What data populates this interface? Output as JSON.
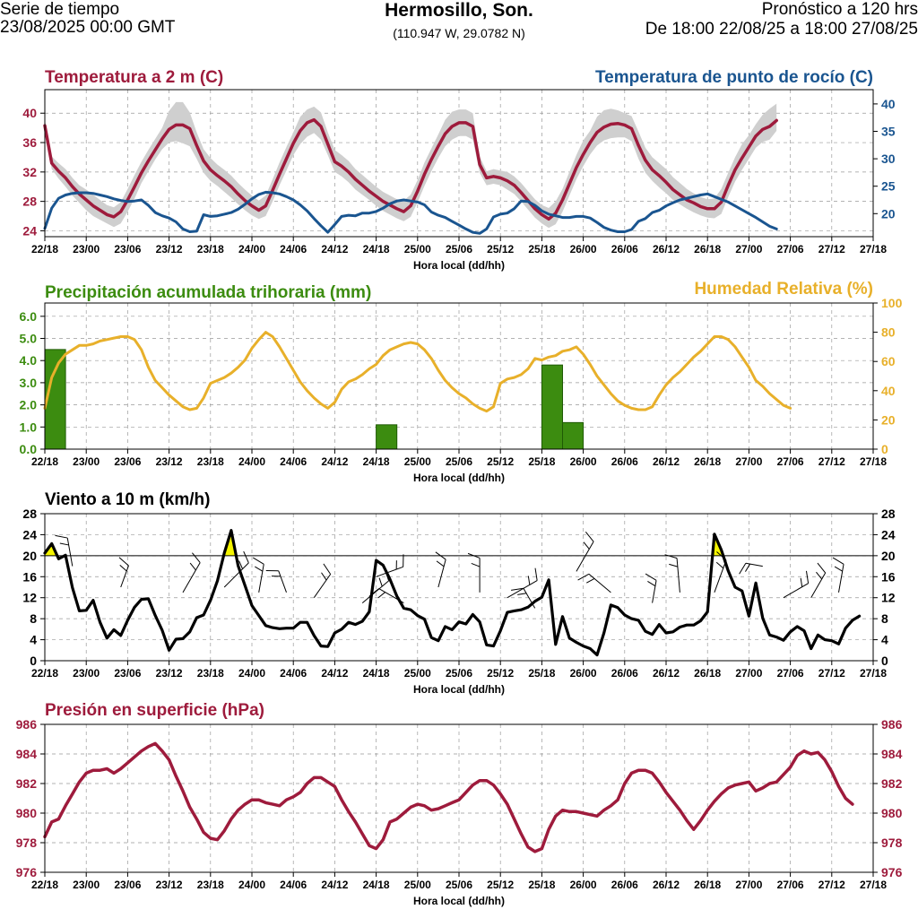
{
  "header": {
    "left_line1": "Serie de tiempo",
    "left_line2": "23/08/2025 00:00 GMT",
    "center_title": "Hermosillo, Son.",
    "center_coords": "(110.947 W, 29.0782 N)",
    "right_line1": "Pronóstico a 120 hrs",
    "right_line2": "De 18:00 22/08/25 a 18:00 27/08/25"
  },
  "colors": {
    "temperature": "#9e1b3c",
    "dewpoint": "#1a5590",
    "precip": "#3c8c10",
    "humidity": "#e8b02a",
    "wind": "#000000",
    "gust_fill": "#f5f500",
    "pressure": "#9e1b3c",
    "spread": "#cfcfcf"
  },
  "chart_data": [
    {
      "type": "line",
      "title_left": "Temperatura a 2 m (C)",
      "title_right": "Temperatura de punto de rocío (C)",
      "xlabel": "Hora local (dd/hh)",
      "x_ticks": [
        "22/18",
        "23/00",
        "23/06",
        "23/12",
        "23/18",
        "24/00",
        "24/06",
        "24/12",
        "24/18",
        "25/00",
        "25/06",
        "25/12",
        "25/18",
        "26/00",
        "26/06",
        "26/12",
        "26/18",
        "27/00",
        "27/06",
        "27/12",
        "27/18"
      ],
      "left_ylim": [
        23.2,
        43.2
      ],
      "left_yticks": [
        24,
        28,
        32,
        36,
        40
      ],
      "right_ylim": [
        15.8,
        42.6
      ],
      "right_yticks": [
        20,
        25,
        30,
        35,
        40
      ],
      "series": [
        {
          "name": "Temperatura a 2 m",
          "axis": "left",
          "values": [
            38.3,
            33.2,
            32.1,
            31.2,
            30.0,
            29.0,
            28.2,
            27.4,
            26.8,
            26.2,
            25.9,
            26.6,
            28.2,
            30.0,
            31.9,
            33.5,
            35.0,
            36.5,
            37.8,
            38.4,
            38.4,
            37.9,
            35.6,
            33.5,
            32.3,
            31.5,
            30.8,
            30.0,
            29.0,
            28.1,
            27.4,
            26.8,
            27.4,
            29.5,
            31.7,
            33.8,
            35.9,
            37.6,
            38.7,
            39.1,
            38.2,
            35.8,
            33.4,
            32.8,
            32.0,
            31.0,
            30.2,
            29.4,
            28.7,
            28.0,
            27.5,
            27.0,
            26.6,
            27.4,
            29.4,
            31.7,
            33.7,
            35.5,
            37.2,
            38.2,
            38.7,
            38.7,
            38.2,
            33.0,
            31.2,
            31.4,
            31.2,
            30.8,
            30.2,
            29.2,
            28.1,
            27.0,
            26.2,
            25.6,
            26.4,
            28.2,
            30.4,
            32.6,
            34.4,
            36.0,
            37.4,
            38.1,
            38.5,
            38.6,
            38.4,
            37.9,
            35.6,
            33.6,
            32.3,
            31.5,
            30.6,
            29.6,
            28.9,
            28.2,
            27.8,
            27.3,
            27.0,
            27.0,
            27.9,
            30.2,
            32.3,
            33.9,
            35.4,
            36.9,
            37.8,
            38.2,
            39.0
          ],
          "spread_low": [
            37.3,
            32.4,
            31.1,
            30.0,
            28.8,
            27.8,
            26.8,
            26.0,
            25.5,
            25.0,
            24.5,
            25.0,
            26.6,
            28.4,
            30.5,
            32.1,
            33.7,
            35.1,
            36.0,
            36.2,
            35.9,
            35.5,
            33.8,
            31.9,
            30.8,
            30.1,
            29.3,
            28.5,
            27.6,
            26.8,
            26.1,
            25.6,
            26.0,
            28.0,
            30.2,
            32.2,
            34.3,
            35.8,
            36.8,
            37.3,
            36.4,
            34.3,
            32.0,
            31.4,
            30.6,
            29.6,
            28.9,
            28.2,
            27.4,
            26.7,
            26.2,
            25.7,
            25.3,
            25.9,
            27.9,
            30.1,
            32.1,
            33.9,
            35.5,
            36.4,
            36.9,
            36.9,
            36.4,
            31.9,
            30.2,
            30.4,
            30.2,
            29.6,
            29.0,
            28.0,
            26.9,
            25.8,
            25.0,
            24.4,
            24.9,
            26.6,
            28.8,
            31.0,
            32.8,
            34.4,
            35.6,
            36.3,
            36.6,
            36.7,
            36.7,
            36.2,
            33.8,
            31.9,
            30.8,
            29.9,
            29.1,
            28.2,
            27.6,
            27.0,
            26.5,
            26.1,
            25.8,
            25.7,
            26.3,
            28.6,
            30.7,
            32.3,
            33.8,
            35.3,
            36.1,
            36.4,
            37.6
          ],
          "spread_high": [
            39.1,
            34.1,
            33.2,
            32.4,
            31.2,
            30.2,
            29.6,
            28.9,
            28.2,
            27.5,
            27.2,
            27.9,
            29.7,
            31.6,
            33.4,
            35.0,
            36.5,
            38.0,
            40.3,
            41.5,
            41.5,
            40.1,
            37.4,
            35.1,
            33.9,
            33.0,
            32.3,
            31.5,
            30.5,
            29.6,
            28.8,
            28.1,
            28.8,
            31.0,
            33.3,
            35.4,
            37.4,
            39.5,
            40.5,
            40.9,
            40.1,
            37.4,
            35.0,
            34.3,
            33.5,
            32.4,
            31.6,
            30.8,
            30.0,
            29.3,
            28.8,
            28.3,
            28.1,
            28.9,
            30.9,
            33.3,
            35.2,
            37.1,
            39.1,
            40.2,
            40.5,
            40.5,
            40.0,
            34.1,
            32.1,
            32.4,
            32.2,
            32.0,
            31.4,
            30.5,
            29.4,
            28.3,
            27.5,
            27.1,
            28.0,
            29.7,
            32.0,
            34.3,
            36.3,
            37.6,
            39.5,
            40.4,
            40.6,
            40.4,
            40.0,
            39.6,
            37.5,
            35.3,
            34.0,
            33.2,
            32.4,
            31.3,
            30.5,
            29.7,
            29.1,
            28.6,
            28.3,
            28.4,
            29.7,
            31.9,
            34.0,
            35.8,
            37.0,
            38.5,
            39.8,
            40.6,
            41.3
          ]
        },
        {
          "name": "Temperatura de punto de rocío",
          "axis": "right",
          "values": [
            17.3,
            21.0,
            22.8,
            23.4,
            23.7,
            23.8,
            23.8,
            23.7,
            23.4,
            23.1,
            22.7,
            22.4,
            22.2,
            22.3,
            22.5,
            21.5,
            20.2,
            19.6,
            19.2,
            18.5,
            17.2,
            16.7,
            16.8,
            19.8,
            19.5,
            19.6,
            19.9,
            20.2,
            20.8,
            21.7,
            22.7,
            23.5,
            23.9,
            23.8,
            23.6,
            23.1,
            22.5,
            21.6,
            20.5,
            19.1,
            17.8,
            16.6,
            18.0,
            19.5,
            19.7,
            19.6,
            20.1,
            20.1,
            20.4,
            21.0,
            21.8,
            22.3,
            22.5,
            22.3,
            22.1,
            21.6,
            20.3,
            19.7,
            19.3,
            18.6,
            17.9,
            17.2,
            16.6,
            16.4,
            17.2,
            19.4,
            19.9,
            20.1,
            20.9,
            22.3,
            22.2,
            21.5,
            20.5,
            19.9,
            19.6,
            19.3,
            19.3,
            19.5,
            19.5,
            19.2,
            18.4,
            17.5,
            17.0,
            16.7,
            16.7,
            17.1,
            18.6,
            19.1,
            20.2,
            20.6,
            21.4,
            22.0,
            22.5,
            22.8,
            23.1,
            23.4,
            23.6,
            23.1,
            22.6,
            22.1,
            21.4,
            20.7,
            20.0,
            19.3,
            18.5,
            17.7,
            17.2
          ]
        }
      ]
    },
    {
      "type": "bar+line",
      "title_left": "Precipitación acumulada trihoraria (mm)",
      "title_right": "Humedad Relativa (%)",
      "xlabel": "Hora local (dd/hh)",
      "x_ticks": [
        "22/18",
        "23/00",
        "23/06",
        "23/12",
        "23/18",
        "24/00",
        "24/06",
        "24/12",
        "24/18",
        "25/00",
        "25/06",
        "25/12",
        "25/18",
        "26/00",
        "26/06",
        "26/12",
        "26/18",
        "27/00",
        "27/06",
        "27/12",
        "27/18"
      ],
      "left_ylim": [
        0,
        6.6
      ],
      "left_yticks": [
        "0.0",
        "1.0",
        "2.0",
        "3.0",
        "4.0",
        "5.0",
        "6.0"
      ],
      "right_ylim": [
        0,
        100
      ],
      "right_yticks": [
        0,
        20,
        40,
        60,
        80,
        100
      ],
      "bars": [
        {
          "start_hour": 0,
          "value": 4.5
        },
        {
          "start_hour": 48,
          "value": 1.1
        },
        {
          "start_hour": 72,
          "value": 3.8
        },
        {
          "start_hour": 75,
          "value": 1.2
        }
      ],
      "humidity_values": [
        28,
        49,
        59,
        65,
        68,
        71,
        71,
        72,
        74,
        75,
        76,
        77,
        77,
        75,
        68,
        56,
        47,
        42,
        37,
        33,
        29,
        27,
        28,
        35,
        45,
        47,
        49,
        52,
        56,
        61,
        69,
        75,
        80,
        77,
        70,
        62,
        54,
        46,
        40,
        35,
        31,
        28,
        32,
        41,
        46,
        48,
        51,
        55,
        58,
        64,
        68,
        70,
        72,
        73,
        72,
        68,
        62,
        54,
        47,
        42,
        38,
        35,
        31,
        28,
        26,
        29,
        45,
        48,
        49,
        51,
        55,
        62,
        61,
        63,
        64,
        67,
        68,
        70,
        65,
        58,
        50,
        44,
        38,
        33,
        30,
        28,
        27,
        27,
        29,
        37,
        44,
        49,
        53,
        58,
        63,
        67,
        72,
        77,
        77,
        75,
        70,
        63,
        56,
        47,
        43,
        38,
        34,
        30,
        28
      ]
    },
    {
      "type": "line",
      "title": "Viento a 10 m (km/h)",
      "xlabel": "Hora local (dd/hh)",
      "x_ticks": [
        "22/18",
        "23/00",
        "23/06",
        "23/12",
        "23/18",
        "24/00",
        "24/06",
        "24/12",
        "24/18",
        "25/00",
        "25/06",
        "25/12",
        "25/18",
        "26/00",
        "26/06",
        "26/12",
        "26/18",
        "27/00",
        "27/06",
        "27/12",
        "27/18"
      ],
      "ylim": [
        0,
        28
      ],
      "yticks": [
        0,
        4,
        8,
        12,
        16,
        20,
        24,
        28
      ],
      "threshold": 20,
      "series": [
        {
          "name": "Viento a 10 m",
          "values": [
            20.5,
            22.3,
            19.4,
            20.1,
            13.9,
            9.5,
            9.6,
            11.5,
            7.3,
            4.3,
            5.9,
            4.8,
            7.7,
            10.2,
            11.7,
            11.8,
            8.6,
            5.8,
            2.0,
            4.1,
            4.2,
            5.5,
            8.2,
            8.7,
            11.5,
            15.2,
            20.5,
            24.8,
            18.1,
            14.3,
            10.5,
            8.6,
            6.7,
            6.3,
            6.1,
            6.2,
            6.2,
            7.3,
            7.3,
            4.8,
            2.8,
            2.7,
            5.3,
            6.0,
            7.3,
            6.9,
            7.5,
            9.3,
            19.1,
            18.2,
            15.5,
            12.3,
            10.0,
            9.7,
            8.6,
            7.9,
            4.4,
            3.8,
            6.5,
            5.9,
            7.4,
            7.0,
            8.8,
            7.4,
            3.0,
            2.8,
            5.7,
            9.2,
            9.5,
            9.7,
            10.2,
            11.3,
            12.1,
            15.4,
            3.1,
            8.4,
            4.3,
            3.5,
            2.8,
            2.3,
            1.1,
            5.3,
            10.6,
            10.1,
            8.7,
            8.0,
            7.7,
            5.6,
            5.0,
            6.9,
            5.3,
            5.5,
            6.4,
            6.8,
            6.8,
            7.6,
            9.3,
            24.1,
            21.1,
            17.1,
            14.0,
            13.3,
            8.5,
            14.8,
            8.1,
            4.9,
            4.5,
            3.9,
            5.5,
            6.5,
            5.7,
            2.3,
            4.9,
            4.0,
            3.8,
            3.2,
            6.2,
            7.7,
            8.5
          ]
        }
      ]
    },
    {
      "type": "line",
      "title": "Presión en superficie (hPa)",
      "xlabel": "Hora local (dd/hh)",
      "x_ticks": [
        "22/18",
        "23/00",
        "23/06",
        "23/12",
        "23/18",
        "24/00",
        "24/06",
        "24/12",
        "24/18",
        "25/00",
        "25/06",
        "25/12",
        "25/18",
        "26/00",
        "26/06",
        "26/12",
        "26/18",
        "27/00",
        "27/06",
        "27/12",
        "27/18"
      ],
      "ylim": [
        976,
        986
      ],
      "yticks": [
        976,
        978,
        980,
        982,
        984,
        986
      ],
      "series": [
        {
          "name": "Presión en superficie",
          "values": [
            978.4,
            979.4,
            979.6,
            980.5,
            981.3,
            982.1,
            982.7,
            982.9,
            982.9,
            983.0,
            982.7,
            983.0,
            983.4,
            983.8,
            984.2,
            984.5,
            984.7,
            984.2,
            983.6,
            982.5,
            981.5,
            980.4,
            979.6,
            978.7,
            978.3,
            978.2,
            978.8,
            979.6,
            980.2,
            980.6,
            980.9,
            980.9,
            980.7,
            980.6,
            980.5,
            980.9,
            981.1,
            981.4,
            982.0,
            982.4,
            982.4,
            982.1,
            981.8,
            980.9,
            980.1,
            979.4,
            978.6,
            977.8,
            977.6,
            978.2,
            979.4,
            979.6,
            980.0,
            980.4,
            980.6,
            980.5,
            980.2,
            980.3,
            980.5,
            980.7,
            980.9,
            981.4,
            981.9,
            982.2,
            982.2,
            981.9,
            981.3,
            980.6,
            979.6,
            978.6,
            977.7,
            977.4,
            977.6,
            978.9,
            979.8,
            980.2,
            980.1,
            980.1,
            980.0,
            979.9,
            979.8,
            980.2,
            980.5,
            980.9,
            982.0,
            982.7,
            982.9,
            982.9,
            982.7,
            982.1,
            981.4,
            980.8,
            980.2,
            979.5,
            978.9,
            979.5,
            980.2,
            980.8,
            981.3,
            981.7,
            981.9,
            982.0,
            982.1,
            981.5,
            981.7,
            982.0,
            982.1,
            982.6,
            983.1,
            983.9,
            984.2,
            984.0,
            984.1,
            983.6,
            982.8,
            981.8,
            981.0,
            980.6
          ]
        }
      ]
    }
  ]
}
